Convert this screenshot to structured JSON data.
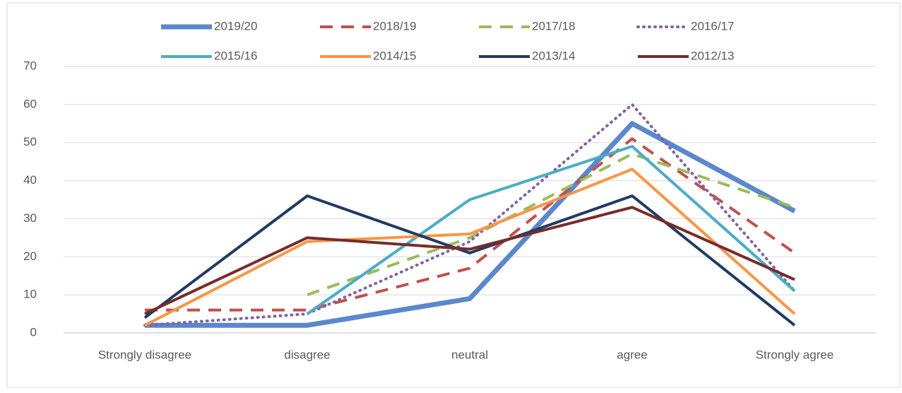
{
  "chart_data": {
    "type": "line",
    "categories": [
      "Strongly disagree",
      "disagree",
      "neutral",
      "agree",
      "Strongly agree"
    ],
    "ylim": [
      0,
      70
    ],
    "yticks": [
      0,
      10,
      20,
      30,
      40,
      50,
      60,
      70
    ],
    "grid": true,
    "legend": "top",
    "series": [
      {
        "name": "2019/20",
        "color": "#5b87cc",
        "width": 7,
        "dash": "solid",
        "values": [
          2,
          2,
          9,
          55,
          32
        ]
      },
      {
        "name": "2018/19",
        "color": "#c0504d",
        "width": 4,
        "dash": "dashed",
        "values": [
          6,
          6,
          17,
          51,
          21
        ]
      },
      {
        "name": "2017/18",
        "color": "#9bbb59",
        "width": 4,
        "dash": "dashed",
        "values": [
          null,
          10,
          25,
          47,
          33
        ]
      },
      {
        "name": "2016/17",
        "color": "#8064a2",
        "width": 4,
        "dash": "dotted",
        "values": [
          2,
          5,
          24,
          60,
          11
        ]
      },
      {
        "name": "2015/16",
        "color": "#4bacc6",
        "width": 4,
        "dash": "solid",
        "values": [
          null,
          5,
          35,
          49,
          11
        ]
      },
      {
        "name": "2014/15",
        "color": "#f79646",
        "width": 4,
        "dash": "solid",
        "values": [
          2,
          24,
          26,
          43,
          5
        ]
      },
      {
        "name": "2013/14",
        "color": "#1f3b64",
        "width": 4,
        "dash": "solid",
        "values": [
          4,
          36,
          21,
          36,
          2
        ]
      },
      {
        "name": "2012/13",
        "color": "#772c2a",
        "width": 4,
        "dash": "solid",
        "values": [
          5,
          25,
          22,
          33,
          14
        ]
      }
    ]
  }
}
